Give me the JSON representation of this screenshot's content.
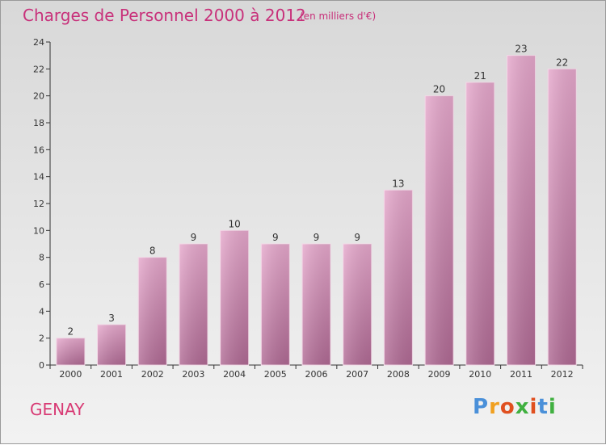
{
  "header": {
    "title": "Charges de Personnel 2000 à 2012",
    "subtitle": "(en milliers d'€)"
  },
  "footer": {
    "commune": "GENAY",
    "logo_text": "Proxiti",
    "logo_colors": [
      "#4a90d9",
      "#f0a020",
      "#e05020",
      "#40b040",
      "#e05020",
      "#4a90d9",
      "#40b040"
    ]
  },
  "colors": {
    "bar_top": "#e6a8cc",
    "bar_bottom": "#b06a94",
    "title": "#c8307a",
    "commune": "#d83a74"
  },
  "chart_data": {
    "type": "bar",
    "categories": [
      "2000",
      "2001",
      "2002",
      "2003",
      "2004",
      "2005",
      "2006",
      "2007",
      "2008",
      "2009",
      "2010",
      "2011",
      "2012"
    ],
    "values": [
      2,
      3,
      8,
      9,
      10,
      9,
      9,
      9,
      13,
      20,
      21,
      23,
      22
    ],
    "title": "Charges de Personnel 2000 à 2012",
    "subtitle": "(en milliers d'€)",
    "xlabel": "",
    "ylabel": "",
    "ylim": [
      0,
      24
    ],
    "yticks": [
      0,
      2,
      4,
      6,
      8,
      10,
      12,
      14,
      16,
      18,
      20,
      22,
      24
    ],
    "grid": false,
    "data_labels": true
  }
}
